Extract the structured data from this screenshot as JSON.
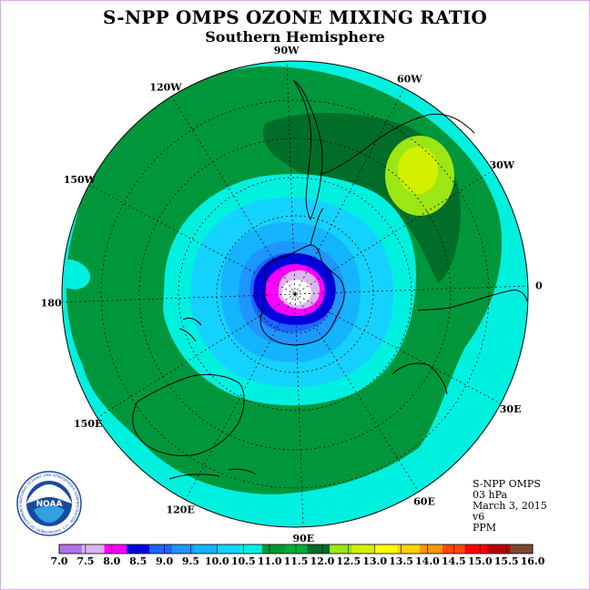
{
  "title": "S-NPP OMPS OZONE MIXING RATIO",
  "subtitle": "Southern Hemisphere",
  "longitude_labels": [
    "90W",
    "60W",
    "30W",
    "0",
    "30E",
    "60E",
    "90E",
    "120E",
    "150E",
    "180",
    "150W",
    "120W"
  ],
  "info": {
    "product": "S-NPP OMPS",
    "level": "03 hPa",
    "date": "March 3, 2015",
    "version": "v6",
    "units": "PPM"
  },
  "logo": {
    "text": "NOAA",
    "ring_text": "NATIONAL OCEANIC AND ATMOSPHERIC ADMINISTRATION · U.S. DEPARTMENT OF COMMERCE"
  },
  "colorbar": {
    "labels": [
      "7.0",
      "7.5",
      "8.0",
      "8.5",
      "9.0",
      "9.5",
      "10.0",
      "10.5",
      "11.0",
      "11.5",
      "12.0",
      "12.5",
      "13.0",
      "13.5",
      "14.0",
      "14.5",
      "15.0",
      "15.5",
      "16.0"
    ],
    "colors": [
      "#b070e8",
      "#dcb4f0",
      "#ff00ff",
      "#0000e0",
      "#1e64ff",
      "#1e96ff",
      "#14b4ff",
      "#14d2ff",
      "#00f0e0",
      "#009632",
      "#00ac3a",
      "#006e28",
      "#9ce614",
      "#d2f000",
      "#ffff00",
      "#ffd200",
      "#ff9600",
      "#ff4800",
      "#ff0000",
      "#b40000",
      "#7a4a30"
    ]
  },
  "legend_colors_map": {
    "ocean_fill": "#00f0e0",
    "green": "#00963c",
    "dark_green": "#006e28",
    "light_blue": "#14d2ff",
    "mid_blue": "#14b4ff",
    "blue2": "#1e96ff",
    "blue3": "#1e64ff",
    "deep_blue": "#0000e0",
    "magenta": "#ff00ff",
    "lavender": "#dcb4f0",
    "white_core": "#ffffff",
    "yellow_green": "#9ce614",
    "lime": "#d2f000"
  }
}
